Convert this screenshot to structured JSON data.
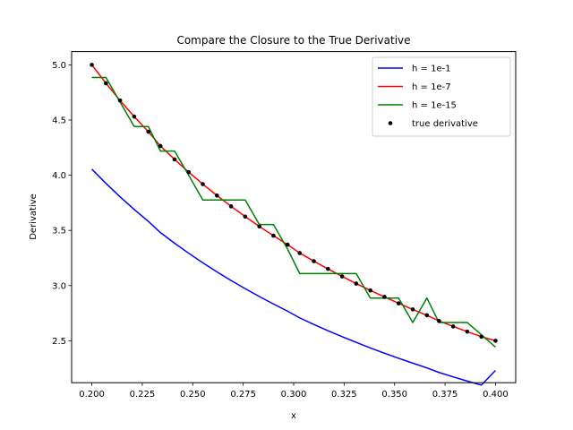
{
  "chart_data": {
    "type": "line",
    "title": "Compare the Closure to the True Derivative",
    "xlabel": "x",
    "ylabel": "Derivative",
    "xlim": [
      0.19,
      0.41
    ],
    "ylim": [
      2.12,
      5.12
    ],
    "xticks": [
      0.2,
      0.225,
      0.25,
      0.275,
      0.3,
      0.325,
      0.35,
      0.375,
      0.4
    ],
    "xtick_labels": [
      "0.200",
      "0.225",
      "0.250",
      "0.275",
      "0.300",
      "0.325",
      "0.350",
      "0.375",
      "0.400"
    ],
    "yticks": [
      2.5,
      3.0,
      3.5,
      4.0,
      4.5,
      5.0
    ],
    "ytick_labels": [
      "2.5",
      "3.0",
      "3.5",
      "4.0",
      "4.5",
      "5.0"
    ],
    "grid": false,
    "legend_position": "top-right",
    "series": [
      {
        "name": "h = 1e-1",
        "style": "line",
        "color": "#0000ff",
        "x": [
          0.2,
          0.207,
          0.214,
          0.221,
          0.228,
          0.234,
          0.241,
          0.248,
          0.255,
          0.262,
          0.269,
          0.276,
          0.283,
          0.29,
          0.297,
          0.303,
          0.31,
          0.317,
          0.324,
          0.331,
          0.338,
          0.345,
          0.352,
          0.359,
          0.366,
          0.372,
          0.379,
          0.386,
          0.393,
          0.4
        ],
        "y": [
          4.055,
          3.926,
          3.804,
          3.69,
          3.582,
          3.48,
          3.384,
          3.293,
          3.206,
          3.124,
          3.046,
          2.972,
          2.901,
          2.833,
          2.768,
          2.707,
          2.648,
          2.591,
          2.537,
          2.485,
          2.435,
          2.387,
          2.341,
          2.297,
          2.254,
          2.213,
          2.173,
          2.135,
          2.098,
          2.231
        ]
      },
      {
        "name": "h = 1e-7",
        "style": "line",
        "color": "#ff0000",
        "x": [
          0.2,
          0.207,
          0.214,
          0.221,
          0.228,
          0.234,
          0.241,
          0.248,
          0.255,
          0.262,
          0.269,
          0.276,
          0.283,
          0.29,
          0.297,
          0.303,
          0.31,
          0.317,
          0.324,
          0.331,
          0.338,
          0.345,
          0.352,
          0.359,
          0.366,
          0.372,
          0.379,
          0.386,
          0.393,
          0.4
        ],
        "y": [
          5.0,
          4.833,
          4.677,
          4.531,
          4.394,
          4.265,
          4.143,
          4.028,
          3.919,
          3.816,
          3.718,
          3.625,
          3.536,
          3.452,
          3.371,
          3.295,
          3.221,
          3.151,
          3.083,
          3.018,
          2.956,
          2.897,
          2.839,
          2.784,
          2.731,
          2.68,
          2.63,
          2.583,
          2.537,
          2.5
        ]
      },
      {
        "name": "h = 1e-15",
        "style": "line",
        "color": "#008000",
        "x": [
          0.2,
          0.207,
          0.221,
          0.228,
          0.234,
          0.241,
          0.248,
          0.255,
          0.262,
          0.276,
          0.283,
          0.29,
          0.297,
          0.303,
          0.31,
          0.317,
          0.324,
          0.331,
          0.338,
          0.345,
          0.352,
          0.359,
          0.366,
          0.372,
          0.379,
          0.386,
          0.393,
          0.4
        ],
        "y": [
          4.885,
          4.885,
          4.441,
          4.441,
          4.219,
          4.219,
          4.0,
          3.775,
          3.775,
          3.775,
          3.553,
          3.553,
          3.33,
          3.109,
          3.109,
          3.109,
          3.109,
          3.109,
          2.887,
          2.887,
          2.887,
          2.665,
          2.887,
          2.665,
          2.665,
          2.665,
          2.554,
          2.443
        ]
      },
      {
        "name": "true derivative",
        "style": "points",
        "color": "#000000",
        "x": [
          0.2,
          0.207,
          0.214,
          0.221,
          0.228,
          0.234,
          0.241,
          0.248,
          0.255,
          0.262,
          0.269,
          0.276,
          0.283,
          0.29,
          0.297,
          0.303,
          0.31,
          0.317,
          0.324,
          0.331,
          0.338,
          0.345,
          0.352,
          0.359,
          0.366,
          0.372,
          0.379,
          0.386,
          0.393,
          0.4
        ],
        "y": [
          5.0,
          4.833,
          4.677,
          4.531,
          4.394,
          4.265,
          4.143,
          4.028,
          3.919,
          3.816,
          3.718,
          3.625,
          3.536,
          3.452,
          3.371,
          3.295,
          3.221,
          3.151,
          3.083,
          3.018,
          2.956,
          2.897,
          2.839,
          2.784,
          2.731,
          2.68,
          2.63,
          2.583,
          2.537,
          2.5
        ]
      }
    ]
  }
}
